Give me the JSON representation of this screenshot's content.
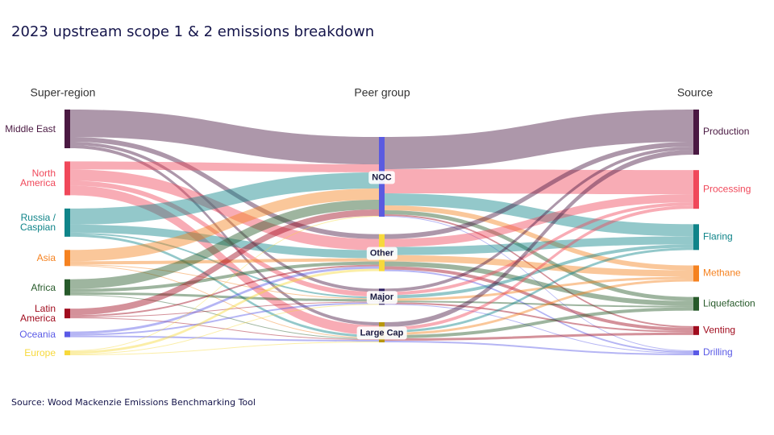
{
  "title": "2023 upstream scope 1 & 2 emissions breakdown",
  "source_note": "Source: Wood Mackenzie Emissions Benchmarking Tool",
  "columns": [
    {
      "header": "Super-region",
      "nodes": [
        {
          "label": "Middle East",
          "color": "#4a1942"
        },
        {
          "label": "North America",
          "color": "#f0485a"
        },
        {
          "label": "Russia / Caspian",
          "color": "#0f8489"
        },
        {
          "label": "Asia",
          "color": "#f58220"
        },
        {
          "label": "Africa",
          "color": "#275a2a"
        },
        {
          "label": "Latin America",
          "color": "#a00c1e"
        },
        {
          "label": "Oceania",
          "color": "#5a5ae6"
        },
        {
          "label": "Europe",
          "color": "#f7d93c"
        }
      ]
    },
    {
      "header": "Peer group",
      "nodes": [
        {
          "label": "NOC",
          "color": "#5b5be0"
        },
        {
          "label": "Other",
          "color": "#f7d93c"
        },
        {
          "label": "Major",
          "color": "#2a1a5e"
        },
        {
          "label": "Large Cap",
          "color": "#b8960c"
        }
      ]
    },
    {
      "header": "Source",
      "nodes": [
        {
          "label": "Production",
          "color": "#4a1942"
        },
        {
          "label": "Processing",
          "color": "#f0485a"
        },
        {
          "label": "Flaring",
          "color": "#0f8489"
        },
        {
          "label": "Methane",
          "color": "#f58220"
        },
        {
          "label": "Liquefaction",
          "color": "#275a2a"
        },
        {
          "label": "Venting",
          "color": "#a00c1e"
        },
        {
          "label": "Drilling",
          "color": "#5a5ae6"
        }
      ]
    }
  ],
  "flows": [
    [
      {
        "from": 0,
        "to": 0,
        "value": 34
      },
      {
        "from": 0,
        "to": 1,
        "value": 6
      },
      {
        "from": 0,
        "to": 2,
        "value": 4
      },
      {
        "from": 0,
        "to": 3,
        "value": 4
      },
      {
        "from": 1,
        "to": 0,
        "value": 10
      },
      {
        "from": 1,
        "to": 1,
        "value": 14
      },
      {
        "from": 1,
        "to": 2,
        "value": 6
      },
      {
        "from": 1,
        "to": 3,
        "value": 12
      },
      {
        "from": 2,
        "to": 0,
        "value": 20
      },
      {
        "from": 2,
        "to": 1,
        "value": 10
      },
      {
        "from": 2,
        "to": 2,
        "value": 2
      },
      {
        "from": 2,
        "to": 3,
        "value": 3
      },
      {
        "from": 3,
        "to": 0,
        "value": 14
      },
      {
        "from": 3,
        "to": 1,
        "value": 4
      },
      {
        "from": 3,
        "to": 2,
        "value": 1
      },
      {
        "from": 3,
        "to": 3,
        "value": 1
      },
      {
        "from": 4,
        "to": 0,
        "value": 12
      },
      {
        "from": 4,
        "to": 1,
        "value": 4
      },
      {
        "from": 4,
        "to": 2,
        "value": 3
      },
      {
        "from": 4,
        "to": 3,
        "value": 1
      },
      {
        "from": 5,
        "to": 0,
        "value": 8
      },
      {
        "from": 5,
        "to": 1,
        "value": 2
      },
      {
        "from": 5,
        "to": 2,
        "value": 1
      },
      {
        "from": 5,
        "to": 3,
        "value": 1
      },
      {
        "from": 6,
        "to": 1,
        "value": 3
      },
      {
        "from": 6,
        "to": 2,
        "value": 2
      },
      {
        "from": 6,
        "to": 3,
        "value": 2
      },
      {
        "from": 7,
        "to": 0,
        "value": 1
      },
      {
        "from": 7,
        "to": 1,
        "value": 3
      },
      {
        "from": 7,
        "to": 2,
        "value": 1
      },
      {
        "from": 7,
        "to": 3,
        "value": 1
      }
    ],
    [
      {
        "from": 0,
        "to": 0,
        "value": 40
      },
      {
        "from": 0,
        "to": 1,
        "value": 30
      },
      {
        "from": 0,
        "to": 2,
        "value": 15
      },
      {
        "from": 0,
        "to": 3,
        "value": 6
      },
      {
        "from": 0,
        "to": 4,
        "value": 5
      },
      {
        "from": 0,
        "to": 5,
        "value": 2
      },
      {
        "from": 0,
        "to": 6,
        "value": 1
      },
      {
        "from": 1,
        "to": 0,
        "value": 6
      },
      {
        "from": 1,
        "to": 1,
        "value": 10
      },
      {
        "from": 1,
        "to": 2,
        "value": 10
      },
      {
        "from": 1,
        "to": 3,
        "value": 8
      },
      {
        "from": 1,
        "to": 4,
        "value": 6
      },
      {
        "from": 1,
        "to": 5,
        "value": 4
      },
      {
        "from": 1,
        "to": 6,
        "value": 2
      },
      {
        "from": 2,
        "to": 0,
        "value": 4
      },
      {
        "from": 2,
        "to": 1,
        "value": 4
      },
      {
        "from": 2,
        "to": 2,
        "value": 4
      },
      {
        "from": 2,
        "to": 3,
        "value": 3
      },
      {
        "from": 2,
        "to": 4,
        "value": 2
      },
      {
        "from": 2,
        "to": 5,
        "value": 2
      },
      {
        "from": 2,
        "to": 6,
        "value": 1
      },
      {
        "from": 3,
        "to": 0,
        "value": 6
      },
      {
        "from": 3,
        "to": 1,
        "value": 4
      },
      {
        "from": 3,
        "to": 2,
        "value": 3
      },
      {
        "from": 3,
        "to": 3,
        "value": 3
      },
      {
        "from": 3,
        "to": 4,
        "value": 4
      },
      {
        "from": 3,
        "to": 5,
        "value": 3
      },
      {
        "from": 3,
        "to": 6,
        "value": 2
      }
    ]
  ]
}
